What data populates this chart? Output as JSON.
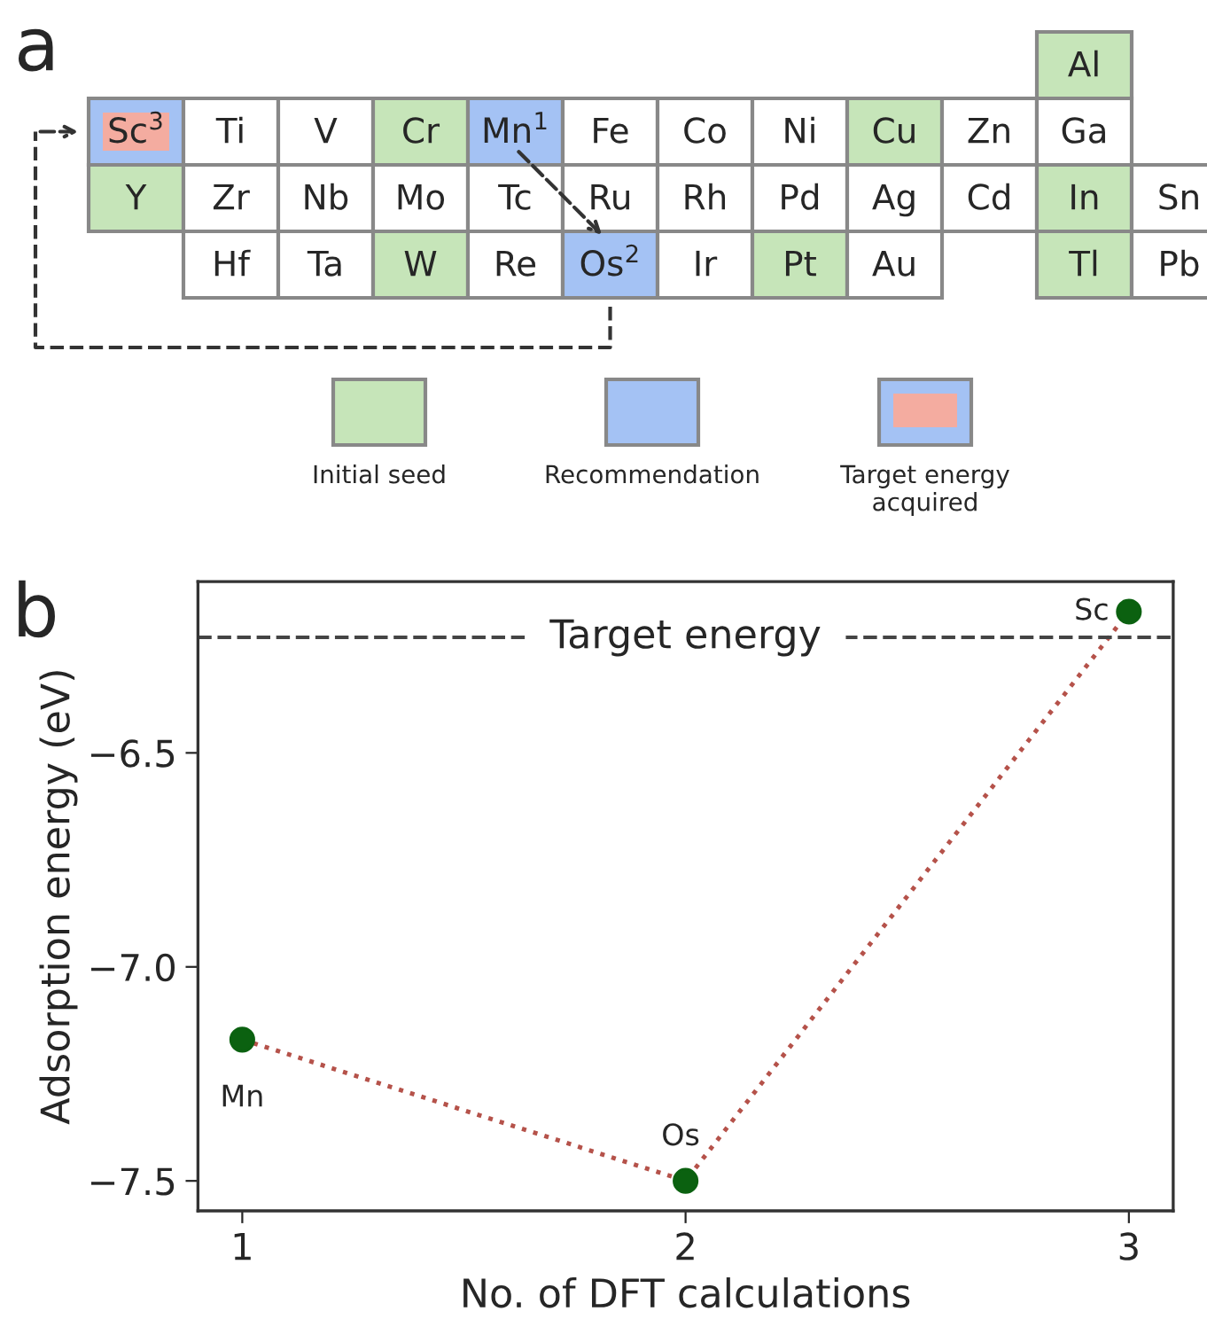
{
  "chart_data": [
    {
      "type": "other",
      "title": "a",
      "categories": [
        "Al",
        "Sc$^{3}$",
        "Ti",
        "V",
        "Cr",
        "Mn$^{1}$",
        "Fe",
        "Co",
        "Ni",
        "Cu",
        "Zn",
        "Ga",
        "Y",
        "Zr",
        "Nb",
        "Mo",
        "Tc",
        "Ru",
        "Rh",
        "Pd",
        "Ag",
        "Cd",
        "In",
        "Sn",
        "Hf",
        "Ta",
        "W",
        "Re",
        "Os$^{2}$",
        "Ir",
        "Pt",
        "Au",
        "Tl",
        "Pb"
      ],
      "colors": [
        "#c6e5b9",
        "#f4aca0",
        "#ffffff",
        "#ffffff",
        "#c6e5b9",
        "#a4c2f4",
        "#ffffff",
        "#ffffff",
        "#ffffff",
        "#c6e5b9",
        "#ffffff",
        "#ffffff",
        "#c6e5b9",
        "#ffffff",
        "#ffffff",
        "#ffffff",
        "#ffffff",
        "#ffffff",
        "#ffffff",
        "#ffffff",
        "#ffffff",
        "#ffffff",
        "#c6e5b9",
        "#ffffff",
        "#ffffff",
        "#ffffff",
        "#c6e5b9",
        "#ffffff",
        "#a4c2f4",
        "#ffffff",
        "#c6e5b9",
        "#ffffff",
        "#c6e5b9",
        "#ffffff"
      ],
      "annotations": [
        "Initial seed",
        "Recommendation",
        "Target energy\nacquired"
      ]
    },
    {
      "type": "line",
      "title": "b",
      "xlabel": "No. of DFT calculations",
      "ylabel": "Adsorption energy (eV)",
      "x": [
        1,
        2,
        3
      ],
      "series": [
        {
          "type": "line",
          "color": "#b5524a",
          "values": [
            -7.17,
            -7.5,
            -6.17
          ]
        },
        {
          "type": "scatter",
          "color": "#0b6110",
          "marker": "circle",
          "values": [
            -7.17,
            -7.5,
            -6.17
          ]
        }
      ],
      "xlim": [
        0.9,
        3.1
      ],
      "xticks": [
        1,
        2,
        3
      ],
      "ylim": [
        -7.57,
        -6.1
      ],
      "yticks": [
        {
          "value": -7.5,
          "label": "−7.5"
        },
        {
          "value": -7.0,
          "label": "−7.0"
        },
        {
          "value": -6.5,
          "label": "−6.5"
        }
      ],
      "ref_lines": [
        {
          "axis": "y",
          "value": -6.23,
          "label": "Target energy",
          "color": "#444444",
          "line_style": "dashed"
        }
      ],
      "annotations": [
        {
          "text": "Mn",
          "x": 1,
          "y": -7.17
        },
        {
          "text": "Os",
          "x": 2,
          "y": -7.5
        },
        {
          "text": "Sc",
          "x": 3,
          "y": -6.17
        }
      ],
      "line_style": "dotted",
      "grid": false,
      "legend": false
    }
  ]
}
